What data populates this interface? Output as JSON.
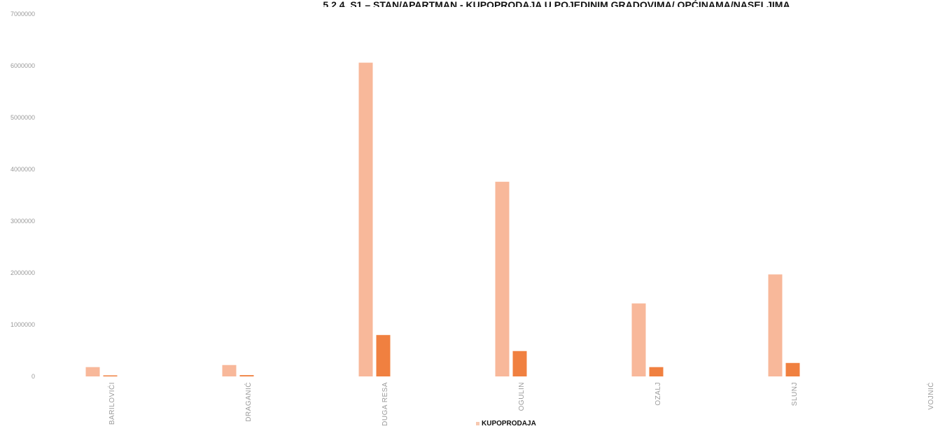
{
  "chart_data": {
    "type": "bar",
    "title": "5.2.4. S1 – STAN/APARTMAN - KUPOPRODAJA U POJEDINIM GRADOVIMA/ OPĆINAMA/NASELJIMA",
    "categories": [
      "BARILOVIĆI",
      "DRAGANIĆ",
      "DUGA RESA",
      "OGULIN",
      "OZALJ",
      "SLUNJ",
      "VOJNIĆ"
    ],
    "series": [
      {
        "name": "KUPOPRODAJA",
        "color": "#f8b89a",
        "values": [
          180000,
          220000,
          6060000,
          3760000,
          1410000,
          1970000,
          0
        ]
      },
      {
        "color": "#f08040",
        "values": [
          20000,
          25000,
          800000,
          490000,
          180000,
          260000,
          0
        ]
      }
    ],
    "ylim": [
      0,
      7000000
    ],
    "yticks": [
      0,
      1000000,
      2000000,
      3000000,
      4000000,
      5000000,
      6000000,
      7000000
    ],
    "xlabel": "",
    "ylabel": "",
    "grid": false,
    "legend": "bottom"
  }
}
